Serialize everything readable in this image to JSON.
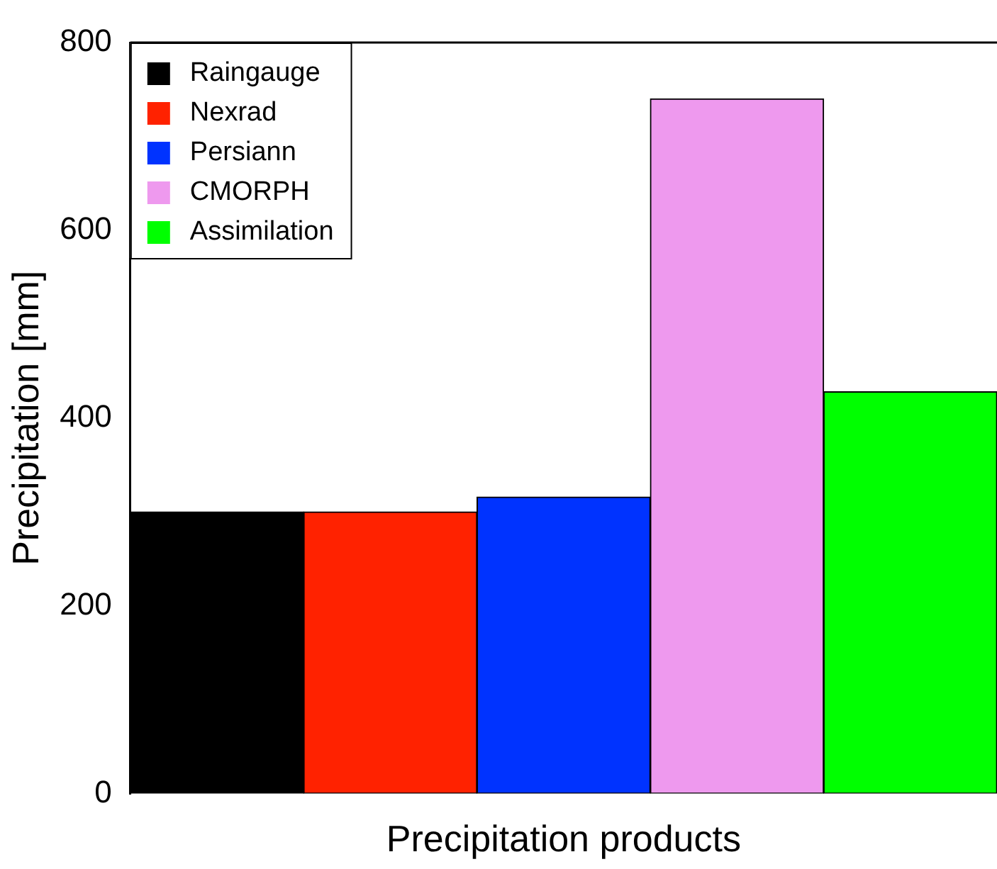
{
  "chart_data": {
    "type": "bar",
    "xlabel": "Precipitation products",
    "ylabel": "Precipitation [mm]",
    "categories": [
      null,
      null,
      null,
      null,
      null
    ],
    "series": [
      {
        "name": "Raingauge",
        "color": "#000000",
        "values": [
          300,
          null,
          null,
          null,
          null
        ]
      },
      {
        "name": "Nexrad",
        "color": "#ff2200",
        "values": [
          null,
          300,
          null,
          null,
          null
        ]
      },
      {
        "name": "Persiann",
        "color": "#0033ff",
        "values": [
          null,
          null,
          316,
          null,
          null
        ]
      },
      {
        "name": "CMORPH",
        "color": "#ee99ee",
        "values": [
          null,
          null,
          null,
          740,
          null
        ]
      },
      {
        "name": "Assimilation",
        "color": "#00ff00",
        "values": [
          null,
          null,
          null,
          null,
          428
        ]
      }
    ],
    "ylim": [
      0,
      800
    ],
    "yticks": [
      0,
      200,
      400,
      600,
      800
    ],
    "grid": false,
    "legend": "top left"
  }
}
